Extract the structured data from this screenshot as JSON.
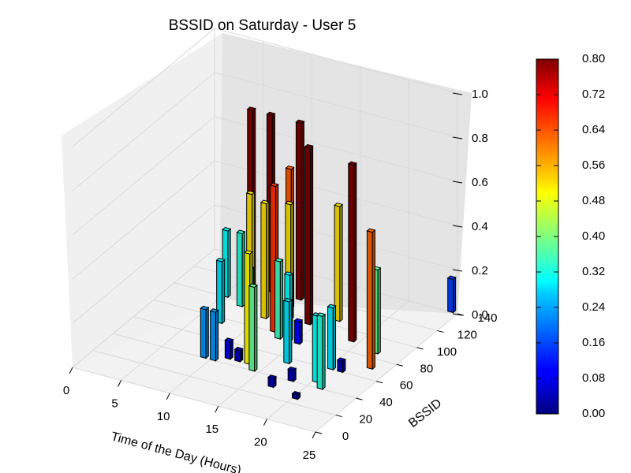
{
  "chart_data": {
    "type": "bar3d",
    "title": "BSSID on Saturday - User 5",
    "xlabel": "Time of the Day (Hours)",
    "ylabel": "BSSID",
    "zlabel": "",
    "xlim": [
      0,
      25
    ],
    "ylim": [
      0,
      140
    ],
    "zlim": [
      0,
      1.0
    ],
    "xticks": [
      "0",
      "5",
      "10",
      "15",
      "20",
      "25"
    ],
    "yticks": [
      "0",
      "20",
      "40",
      "60",
      "80",
      "100",
      "120",
      "140"
    ],
    "zticks": [
      "0.0",
      "0.2",
      "0.4",
      "0.6",
      "0.8",
      "1.0"
    ],
    "colorbar": {
      "colormap": "jet",
      "min": 0.0,
      "max": 0.8,
      "ticks": [
        "0.00",
        "0.08",
        "0.16",
        "0.24",
        "0.32",
        "0.40",
        "0.48",
        "0.56",
        "0.64",
        "0.72",
        "0.80"
      ]
    },
    "bars": [
      {
        "x": 5,
        "y": 100,
        "z": 0.3
      },
      {
        "x": 7,
        "y": 95,
        "z": 0.33
      },
      {
        "x": 7,
        "y": 75,
        "z": 0.28
      },
      {
        "x": 6,
        "y": 115,
        "z": 0.8
      },
      {
        "x": 8,
        "y": 115,
        "z": 0.8
      },
      {
        "x": 8,
        "y": 95,
        "z": 0.52
      },
      {
        "x": 10,
        "y": 90,
        "z": 0.52
      },
      {
        "x": 10,
        "y": 75,
        "z": 0.28
      },
      {
        "x": 11,
        "y": 115,
        "z": 0.8
      },
      {
        "x": 11,
        "y": 105,
        "z": 0.63
      },
      {
        "x": 12,
        "y": 95,
        "z": 0.52
      },
      {
        "x": 12,
        "y": 80,
        "z": 0.66
      },
      {
        "x": 13,
        "y": 75,
        "z": 0.35
      },
      {
        "x": 13,
        "y": 45,
        "z": 0.5
      },
      {
        "x": 14,
        "y": 95,
        "z": 0.8
      },
      {
        "x": 14,
        "y": 40,
        "z": 0.38
      },
      {
        "x": 9,
        "y": 40,
        "z": 0.22
      },
      {
        "x": 10,
        "y": 40,
        "z": 0.22
      },
      {
        "x": 11,
        "y": 45,
        "z": 0.08
      },
      {
        "x": 12,
        "y": 45,
        "z": 0.05
      },
      {
        "x": 14,
        "y": 75,
        "z": 0.3
      },
      {
        "x": 16,
        "y": 105,
        "z": 0.52
      },
      {
        "x": 15,
        "y": 75,
        "z": 0.1
      },
      {
        "x": 17,
        "y": 30,
        "z": 0.04
      },
      {
        "x": 16,
        "y": 55,
        "z": 0.28
      },
      {
        "x": 18,
        "y": 40,
        "z": 0.05
      },
      {
        "x": 19,
        "y": 55,
        "z": 0.05
      },
      {
        "x": 20,
        "y": 60,
        "z": 0.28
      },
      {
        "x": 20,
        "y": 45,
        "z": 0.3
      },
      {
        "x": 21,
        "y": 40,
        "z": 0.33
      },
      {
        "x": 19,
        "y": 90,
        "z": 0.8
      },
      {
        "x": 20,
        "y": 25,
        "z": 0.02
      },
      {
        "x": 21,
        "y": 60,
        "z": 0.05
      },
      {
        "x": 22,
        "y": 85,
        "z": 0.38
      },
      {
        "x": 23,
        "y": 70,
        "z": 0.62
      },
      {
        "x": 24,
        "y": 140,
        "z": 0.15
      }
    ]
  }
}
